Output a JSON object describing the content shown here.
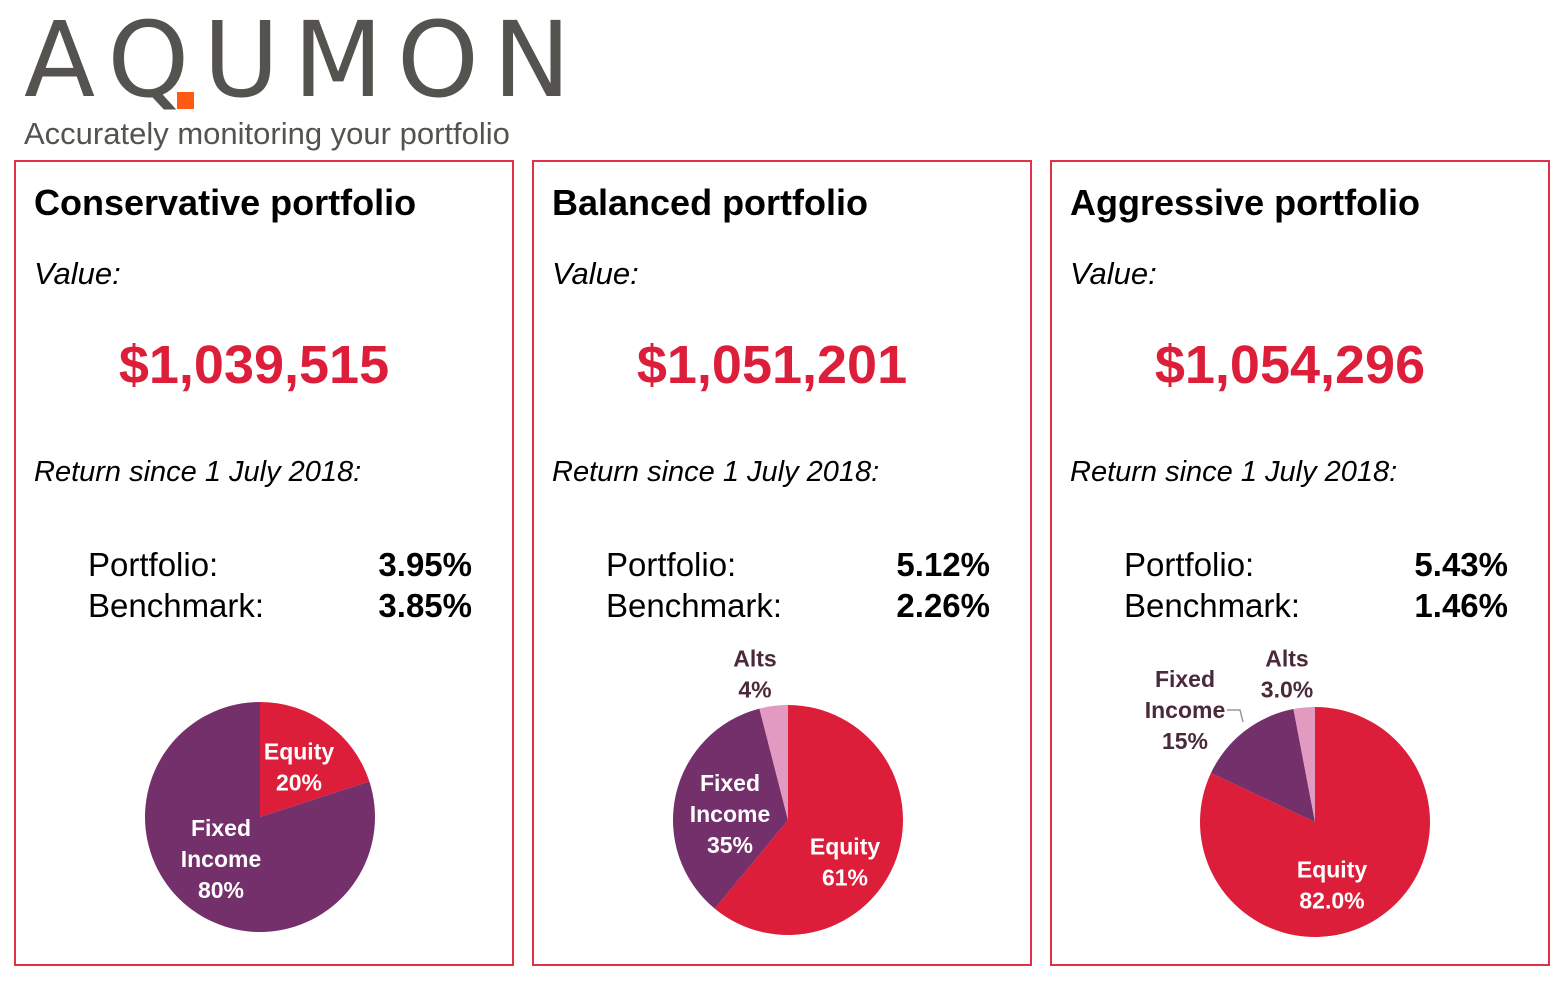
{
  "logo": {
    "brand": "AQUMON",
    "tagline": "Accurately monitoring your portfolio"
  },
  "colors": {
    "equity": "#dc1e3a",
    "fixed_income": "#74306a",
    "alts": "#e29ac0",
    "border": "#e0334a",
    "value": "#dc1e3a",
    "outside_label": "#4a2a3a"
  },
  "panels": [
    {
      "title": "Conservative portfolio",
      "value_label": "Value:",
      "value": "$1,039,515",
      "return_label": "Return since 1 July 2018:",
      "portfolio_label": "Portfolio:",
      "portfolio_return": "3.95%",
      "benchmark_label": "Benchmark:",
      "benchmark_return": "3.85%"
    },
    {
      "title": "Balanced portfolio",
      "value_label": "Value:",
      "value": "$1,051,201",
      "return_label": "Return since 1 July 2018:",
      "portfolio_label": "Portfolio:",
      "portfolio_return": "5.12%",
      "benchmark_label": "Benchmark:",
      "benchmark_return": "2.26%"
    },
    {
      "title": "Aggressive portfolio",
      "value_label": "Value:",
      "value": "$1,054,296",
      "return_label": "Return since 1 July 2018:",
      "portfolio_label": "Portfolio:",
      "portfolio_return": "5.43%",
      "benchmark_label": "Benchmark:",
      "benchmark_return": "1.46%"
    }
  ],
  "chart_data": [
    {
      "type": "pie",
      "title": "Conservative portfolio",
      "slices": [
        {
          "name": "Equity",
          "value": 20,
          "label": "20%"
        },
        {
          "name": "Fixed Income",
          "value": 80,
          "label": "80%"
        }
      ]
    },
    {
      "type": "pie",
      "title": "Balanced portfolio",
      "slices": [
        {
          "name": "Equity",
          "value": 61,
          "label": "61%"
        },
        {
          "name": "Fixed Income",
          "value": 35,
          "label": "35%"
        },
        {
          "name": "Alts",
          "value": 4,
          "label": "4%"
        }
      ]
    },
    {
      "type": "pie",
      "title": "Aggressive portfolio",
      "slices": [
        {
          "name": "Equity",
          "value": 82,
          "label": "82.0%"
        },
        {
          "name": "Fixed Income",
          "value": 15,
          "label": "15%"
        },
        {
          "name": "Alts",
          "value": 3,
          "label": "3.0%"
        }
      ]
    }
  ]
}
